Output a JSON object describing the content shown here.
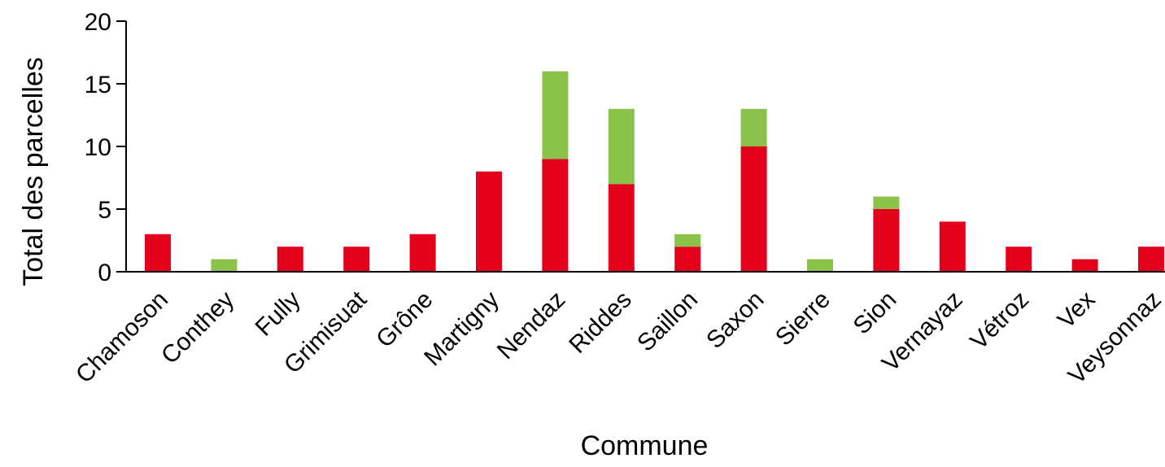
{
  "chart_data": {
    "type": "bar",
    "stacked": true,
    "title": "",
    "xlabel": "Commune",
    "ylabel": "Total des parcelles",
    "ylim": [
      0,
      20
    ],
    "yticks": [
      "0",
      "5",
      "10",
      "15",
      "20"
    ],
    "grid": false,
    "legend": "none",
    "categories": [
      "Chamoson",
      "Conthey",
      "Fully",
      "Grimisuat",
      "Grône",
      "Martigny",
      "Nendaz",
      "Riddes",
      "Saillon",
      "Saxon",
      "Sierre",
      "Sion",
      "Vernayaz",
      "Vétroz",
      "Vex",
      "Veysonnaz"
    ],
    "series": [
      {
        "color": "#e3001b",
        "values": [
          3,
          0,
          2,
          2,
          3,
          8,
          9,
          7,
          2,
          10,
          0,
          5,
          4,
          2,
          1,
          2
        ]
      },
      {
        "color": "#8bc34a",
        "values": [
          0,
          1,
          0,
          0,
          0,
          0,
          7,
          6,
          1,
          3,
          1,
          1,
          0,
          0,
          0,
          0
        ]
      }
    ]
  }
}
